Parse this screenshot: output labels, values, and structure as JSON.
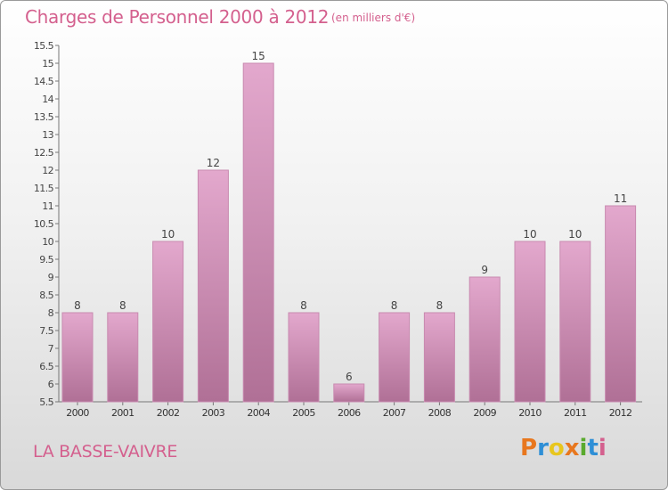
{
  "header": {
    "title": "Charges de Personnel 2000 à 2012",
    "subtitle": "(en milliers d'€)"
  },
  "footer": {
    "town": "LA BASSE-VAIVRE",
    "logo": "Proxiti",
    "logo_colors": [
      "#e8771e",
      "#2e8fd6",
      "#e8c61e",
      "#e8771e",
      "#5aaa2e",
      "#2e8fd6",
      "#d4608e"
    ]
  },
  "colors": {
    "bar_light": "#e3a8cd",
    "bar_dark": "#b07096",
    "bar_edge": "#c88ab0",
    "accent": "#d4608e"
  },
  "chart_data": {
    "type": "bar",
    "categories": [
      "2000",
      "2001",
      "2002",
      "2003",
      "2004",
      "2005",
      "2006",
      "2007",
      "2008",
      "2009",
      "2010",
      "2011",
      "2012"
    ],
    "values": [
      8,
      8,
      10,
      12,
      15,
      8,
      6,
      8,
      8,
      9,
      10,
      10,
      11
    ],
    "data_labels": [
      "8",
      "8",
      "10",
      "12",
      "15",
      "8",
      "6",
      "8",
      "8",
      "9",
      "10",
      "10",
      "11"
    ],
    "ylim": [
      5.5,
      15.5
    ],
    "yticks": [
      "5.5",
      "6",
      "6.5",
      "7",
      "7.5",
      "8",
      "8.5",
      "9",
      "9.5",
      "10",
      "10.5",
      "11",
      "11.5",
      "12",
      "12.5",
      "13",
      "13.5",
      "14",
      "14.5",
      "15",
      "15.5"
    ],
    "title": "Charges de Personnel 2000 à 2012",
    "xlabel": "",
    "ylabel": "",
    "grid": false,
    "legend": "none"
  }
}
